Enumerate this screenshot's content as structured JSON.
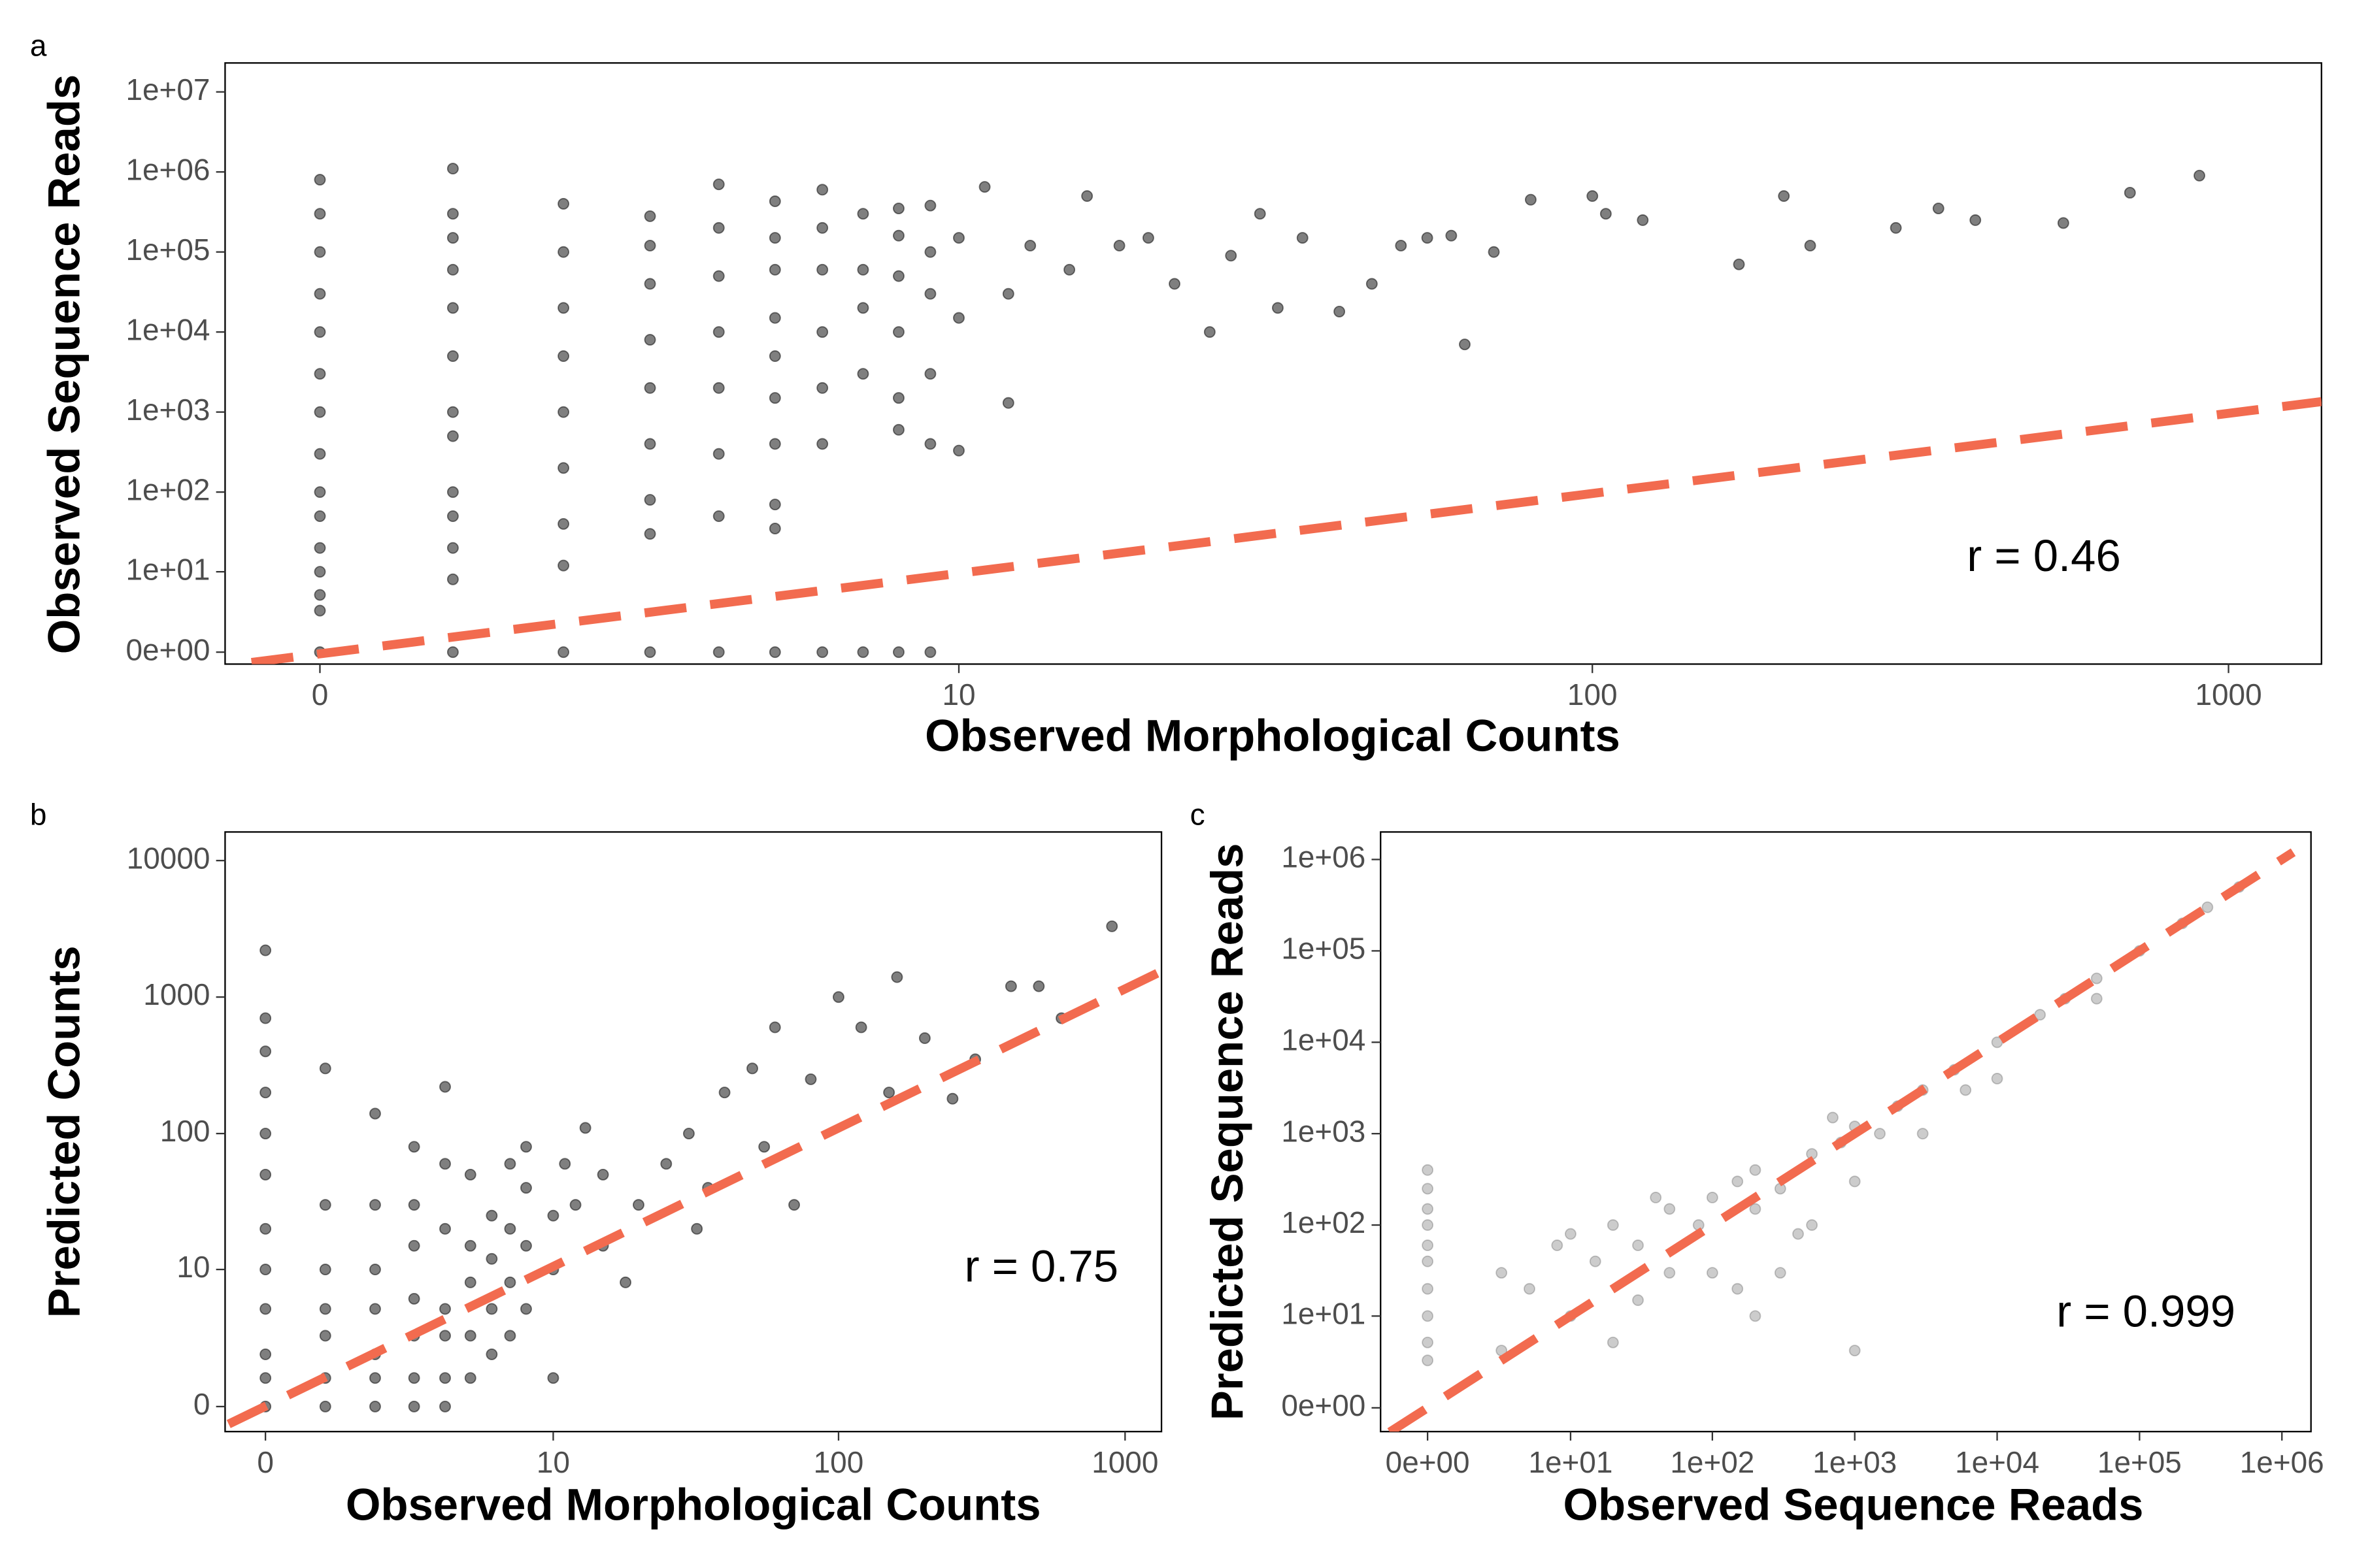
{
  "chart_data": [
    {
      "type": "scatter",
      "panel_label": "a",
      "x_label": "Observed Morphological Counts",
      "y_label": "Observed Sequence Reads",
      "annotation": "r = 0.46",
      "x_scale": "pseudo_log",
      "y_scale": "pseudo_log",
      "color": "#000000",
      "opacity": 0.5,
      "xlim": [
        -0.7,
        1400
      ],
      "ylim": [
        -0.7,
        23000000
      ],
      "xticks": [
        0,
        10,
        100,
        1000
      ],
      "yticks": [
        {
          "value": 0,
          "label": "0e+00"
        },
        {
          "value": 10,
          "label": "1e+01"
        },
        {
          "value": 100,
          "label": "1e+02"
        },
        {
          "value": 1000,
          "label": "1e+03"
        },
        {
          "value": 10000,
          "label": "1e+04"
        },
        {
          "value": 100000,
          "label": "1e+05"
        },
        {
          "value": 1000000,
          "label": "1e+06"
        },
        {
          "value": 10000000,
          "label": "1e+07"
        }
      ],
      "x": [
        0,
        0,
        0,
        0,
        0,
        0,
        0,
        0,
        0,
        0,
        0,
        0,
        0,
        0,
        0,
        1,
        1,
        1,
        1,
        1,
        1,
        1,
        1,
        1,
        1,
        1,
        1,
        1,
        2,
        2,
        2,
        2,
        2,
        2,
        2,
        2,
        2,
        3,
        3,
        3,
        3,
        3,
        3,
        3,
        3,
        3,
        4,
        4,
        4,
        4,
        4,
        4,
        4,
        4,
        5,
        5,
        5,
        5,
        5,
        5,
        5,
        5,
        5,
        5,
        6,
        6,
        6,
        6,
        6,
        6,
        6,
        7,
        7,
        7,
        7,
        7,
        8,
        8,
        8,
        8,
        8,
        8,
        8,
        9,
        9,
        9,
        9,
        9,
        9,
        10,
        10,
        10,
        11,
        12,
        12,
        13,
        15,
        16,
        18,
        20,
        22,
        25,
        27,
        30,
        32,
        35,
        40,
        45,
        50,
        55,
        60,
        63,
        70,
        80,
        100,
        105,
        120,
        170,
        200,
        220,
        300,
        350,
        400,
        550,
        700,
        900
      ],
      "values": [
        0,
        3,
        5,
        10,
        20,
        50,
        100,
        300,
        1000,
        3000,
        10000,
        30000,
        100000,
        300000,
        800000,
        0,
        8,
        20,
        50,
        100,
        500,
        1000,
        5000,
        20000,
        60000,
        150000,
        300000,
        1100000,
        0,
        12,
        40,
        200,
        1000,
        5000,
        20000,
        100000,
        400000,
        0,
        30,
        80,
        400,
        2000,
        8000,
        40000,
        120000,
        280000,
        0,
        50,
        300,
        2000,
        10000,
        50000,
        200000,
        700000,
        0,
        35,
        70,
        400,
        1500,
        5000,
        15000,
        60000,
        150000,
        430000,
        0,
        400,
        2000,
        10000,
        60000,
        200000,
        600000,
        0,
        3000,
        20000,
        60000,
        300000,
        0,
        600,
        1500,
        10000,
        50000,
        160000,
        350000,
        0,
        400,
        3000,
        30000,
        100000,
        380000,
        330,
        15000,
        150000,
        650000,
        1300,
        30000,
        120000,
        60000,
        500000,
        120000,
        150000,
        40000,
        10000,
        90000,
        300000,
        20000,
        150000,
        18000,
        40000,
        120000,
        150000,
        160000,
        7000,
        100000,
        450000,
        500000,
        300000,
        250000,
        70000,
        500000,
        120000,
        200000,
        350000,
        250000,
        230000,
        550000,
        900000
      ],
      "trend_line": {
        "color": "#f26b4f",
        "x": [
          -0.5,
          1400
        ],
        "y": [
          -0.6,
          1350
        ]
      }
    },
    {
      "type": "scatter",
      "panel_label": "b",
      "x_label": "Observed Morphological Counts",
      "y_label": "Predicted Counts",
      "annotation": "r = 0.75",
      "x_scale": "pseudo_log",
      "y_scale": "pseudo_log",
      "color": "#000000",
      "opacity": 0.5,
      "xlim": [
        -0.66,
        1340
      ],
      "ylim": [
        -0.87,
        16200
      ],
      "xticks": [
        0,
        10,
        100,
        1000
      ],
      "yticks": [
        0,
        10,
        100,
        1000,
        10000
      ],
      "x": [
        0,
        0,
        0,
        0,
        0,
        0,
        0,
        0,
        0,
        0,
        0,
        0,
        1,
        1,
        1,
        1,
        1,
        1,
        1,
        2,
        2,
        2,
        2,
        2,
        2,
        2,
        3,
        3,
        3,
        3,
        3,
        3,
        3,
        4,
        4,
        4,
        4,
        4,
        4,
        4,
        5,
        5,
        5,
        5,
        5,
        6,
        6,
        6,
        6,
        7,
        7,
        7,
        7,
        8,
        8,
        8,
        8,
        10,
        10,
        10,
        11,
        12,
        13,
        15,
        15,
        18,
        20,
        25,
        30,
        32,
        35,
        40,
        50,
        55,
        60,
        70,
        80,
        100,
        120,
        150,
        160,
        200,
        250,
        300,
        400,
        500,
        600,
        900
      ],
      "values": [
        0,
        1,
        2,
        5,
        10,
        20,
        50,
        100,
        200,
        400,
        700,
        2200,
        0,
        1,
        3,
        5,
        10,
        30,
        300,
        0,
        1,
        2,
        5,
        10,
        30,
        140,
        0,
        1,
        3,
        6,
        15,
        30,
        80,
        0,
        1,
        3,
        5,
        20,
        60,
        220,
        1,
        3,
        8,
        15,
        50,
        2,
        5,
        12,
        25,
        3,
        8,
        20,
        60,
        5,
        15,
        40,
        80,
        1,
        10,
        25,
        60,
        30,
        110,
        15,
        50,
        8,
        30,
        60,
        100,
        20,
        40,
        200,
        300,
        80,
        600,
        30,
        250,
        1000,
        600,
        200,
        1400,
        500,
        180,
        350,
        1200,
        1200,
        700,
        3300
      ],
      "trend_line": {
        "color": "#f26b4f",
        "x": [
          -0.6,
          1300
        ],
        "y": [
          -0.6,
          1500
        ]
      }
    },
    {
      "type": "scatter",
      "panel_label": "c",
      "x_label": "Observed Sequence Reads",
      "y_label": "Predicted Sequence Reads",
      "annotation": "r = 0.999",
      "x_scale": "pseudo_log",
      "y_scale": "pseudo_log",
      "color": "#000000",
      "opacity": 0.2,
      "xlim": [
        -1.67,
        1600000
      ],
      "ylim": [
        -1.27,
        2000000
      ],
      "xticks": [
        {
          "value": 0,
          "label": "0e+00"
        },
        {
          "value": 10,
          "label": "1e+01"
        },
        {
          "value": 100,
          "label": "1e+02"
        },
        {
          "value": 1000,
          "label": "1e+03"
        },
        {
          "value": 10000,
          "label": "1e+04"
        },
        {
          "value": 100000,
          "label": "1e+05"
        },
        {
          "value": 1000000,
          "label": "1e+06"
        }
      ],
      "yticks": [
        {
          "value": 0,
          "label": "0e+00"
        },
        {
          "value": 10,
          "label": "1e+01"
        },
        {
          "value": 100,
          "label": "1e+02"
        },
        {
          "value": 1000,
          "label": "1e+03"
        },
        {
          "value": 10000,
          "label": "1e+04"
        },
        {
          "value": 100000,
          "label": "1e+05"
        },
        {
          "value": 1000000,
          "label": "1e+06"
        }
      ],
      "x": [
        0,
        0,
        0,
        0,
        0,
        0,
        0,
        0,
        0,
        0,
        3,
        5,
        8,
        10,
        10,
        15,
        20,
        20,
        30,
        30,
        50,
        50,
        80,
        100,
        100,
        150,
        200,
        200,
        300,
        300,
        500,
        500,
        800,
        1000,
        1000,
        2000,
        3000,
        3000,
        5000,
        10000,
        10000,
        20000,
        30000,
        50000,
        100000,
        200000,
        300000,
        500000,
        3,
        40,
        400,
        700,
        1500,
        6000,
        50000,
        200,
        1000,
        150
      ],
      "values": [
        3,
        5,
        10,
        20,
        40,
        60,
        100,
        150,
        250,
        400,
        30,
        20,
        60,
        10,
        80,
        40,
        5,
        100,
        60,
        15,
        150,
        30,
        100,
        200,
        30,
        300,
        150,
        400,
        250,
        30,
        600,
        100,
        800,
        1200,
        300,
        2000,
        3000,
        1000,
        5000,
        10000,
        4000,
        20000,
        30000,
        50000,
        100000,
        200000,
        300000,
        500000,
        4,
        200,
        80,
        1500,
        1000,
        3000,
        30000,
        10,
        4,
        20
      ],
      "trend_line": {
        "color": "#f26b4f",
        "x": [
          -1.3,
          1200000
        ],
        "y": [
          -1.3,
          1200000
        ]
      }
    }
  ]
}
